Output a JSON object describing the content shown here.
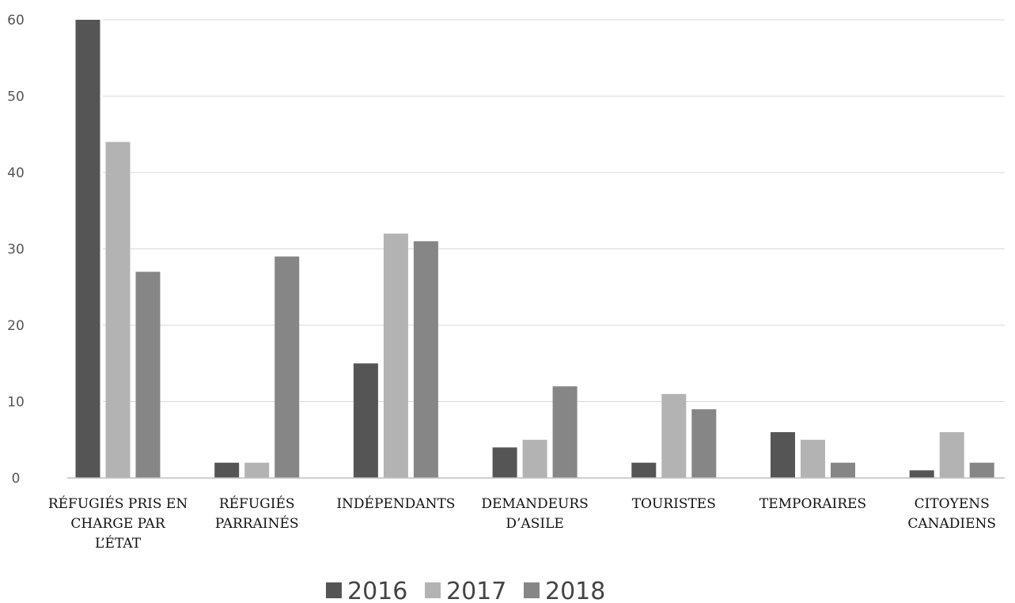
{
  "chart_data": {
    "type": "bar",
    "categories": [
      [
        "RÉFUGIÉS PRIS EN",
        "CHARGE PAR",
        "L’ÉTAT"
      ],
      [
        "RÉFUGIÉS",
        "PARRAINÉS"
      ],
      [
        "INDÉPENDANTS"
      ],
      [
        "DEMANDEURS",
        "D’ASILE"
      ],
      [
        "TOURISTES"
      ],
      [
        "TEMPORAIRES"
      ],
      [
        "CITOYENS",
        "CANADIENS"
      ]
    ],
    "series": [
      {
        "name": "2016",
        "color": "#555555",
        "values": [
          60,
          2,
          15,
          4,
          2,
          6,
          1
        ]
      },
      {
        "name": "2017",
        "color": "#b3b3b3",
        "values": [
          44,
          2,
          32,
          5,
          11,
          5,
          6
        ]
      },
      {
        "name": "2018",
        "color": "#868686",
        "values": [
          27,
          29,
          31,
          12,
          9,
          2,
          2
        ]
      }
    ],
    "yticks": [
      "0",
      "10",
      "20",
      "30",
      "40",
      "50",
      "60"
    ],
    "ylim": [
      0,
      60
    ],
    "grid": true,
    "legend_position": "bottom"
  }
}
